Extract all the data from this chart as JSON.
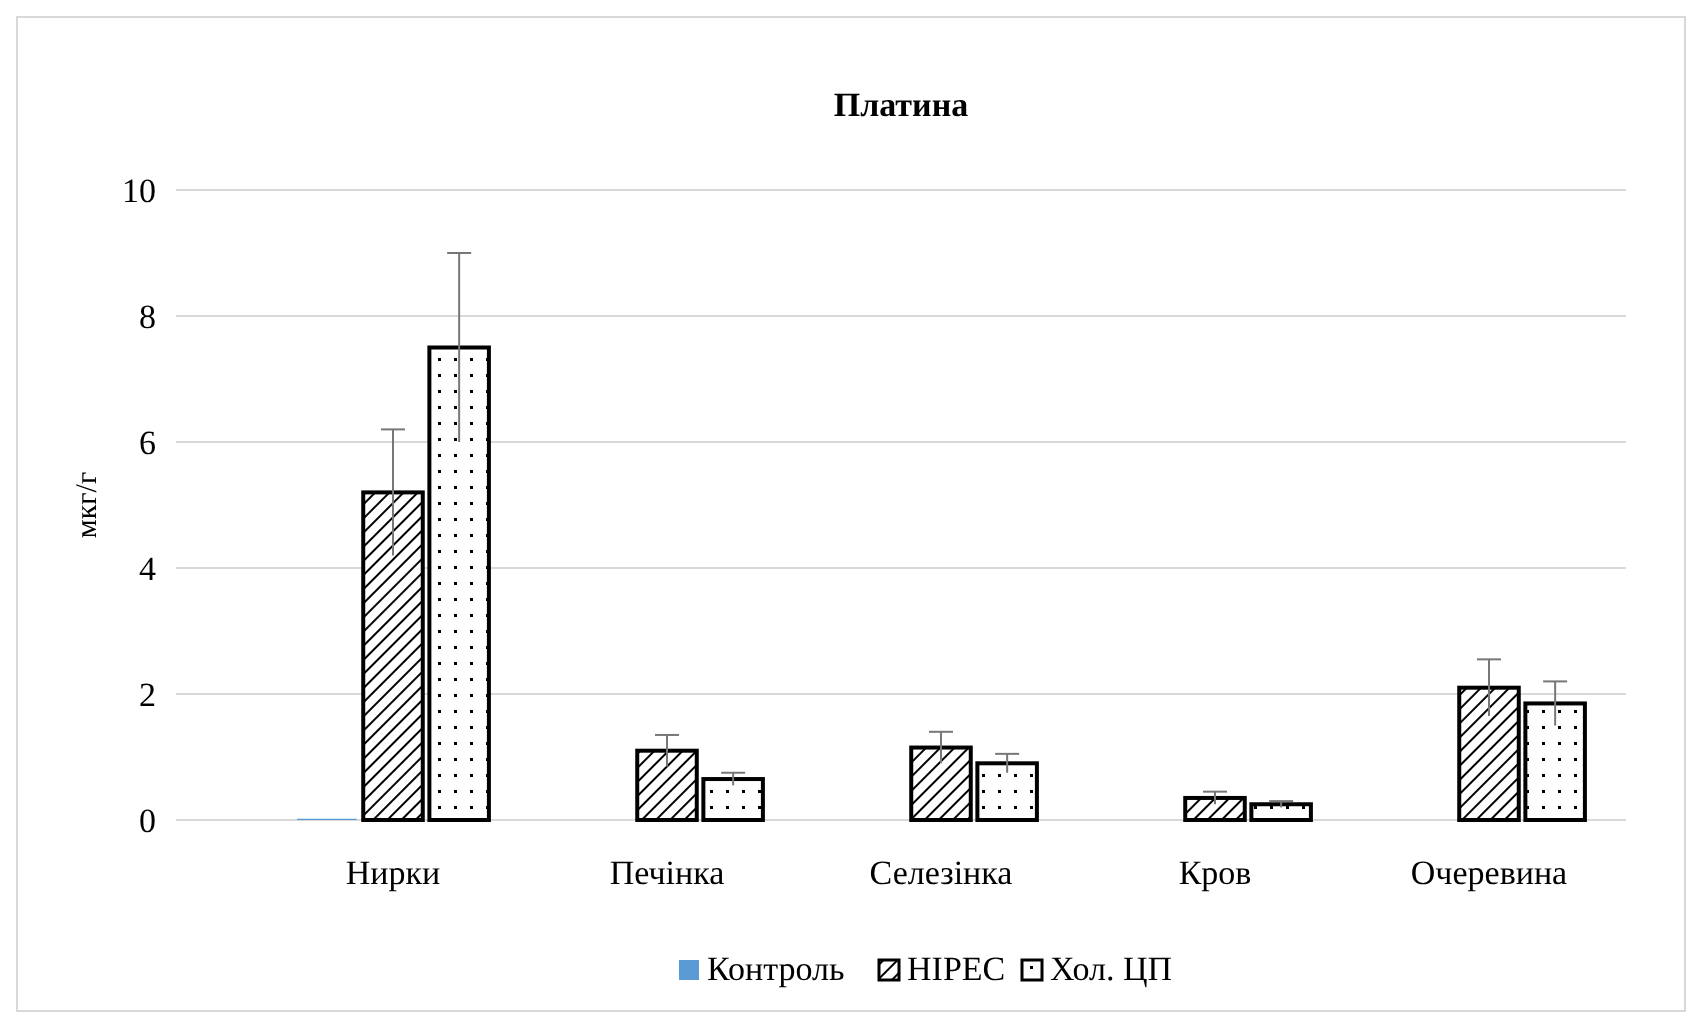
{
  "chart_data": {
    "type": "bar",
    "title": "Платина",
    "ylabel": "мкг/г",
    "categories": [
      "Нирки",
      "Печінка",
      "Селезінка",
      "Кров",
      "Очеревина"
    ],
    "series": [
      {
        "name": "Контроль",
        "color": "#5b9bd5",
        "values": [
          0.02,
          0,
          0,
          0,
          0
        ]
      },
      {
        "name": "HIPEC",
        "color": "#000000",
        "values": [
          5.2,
          1.1,
          1.15,
          0.35,
          2.1
        ],
        "errors": [
          1.0,
          0.25,
          0.25,
          0.1,
          0.45
        ]
      },
      {
        "name": "Хол. ЦП",
        "color": "#000000",
        "values": [
          7.5,
          0.65,
          0.9,
          0.25,
          1.85
        ],
        "errors": [
          1.5,
          0.1,
          0.15,
          0.05,
          0.35
        ]
      }
    ],
    "ylim": [
      0,
      10
    ],
    "yticks": [
      0,
      2,
      4,
      6,
      8,
      10
    ],
    "grid": "y",
    "legend": "bottom"
  }
}
